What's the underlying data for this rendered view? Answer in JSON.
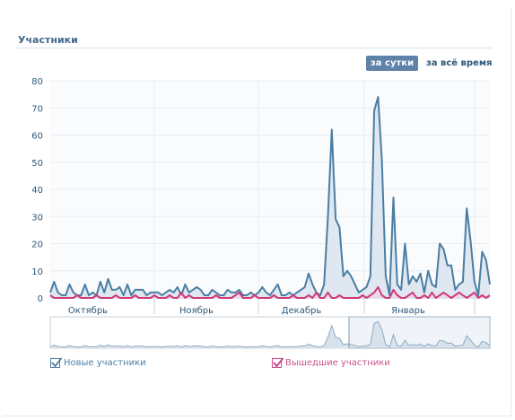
{
  "header": {
    "title": "Участники"
  },
  "period_tabs": [
    {
      "label": "за сутки",
      "active": true
    },
    {
      "label": "за всё время",
      "active": false
    }
  ],
  "colors": {
    "accent": "#5e82a8",
    "series_joined_line": "#4a7ea4",
    "series_joined_fill": "#dbe6ef",
    "series_left_line": "#d0397c",
    "grid": "#e8ecf0"
  },
  "legend": [
    {
      "label": "Новые участники",
      "checked": true,
      "color": "#4a7ea4"
    },
    {
      "label": "Вышедшие участники",
      "checked": true,
      "color": "#d0397c"
    }
  ],
  "chart_data": {
    "type": "area",
    "title": "",
    "xlabel": "",
    "ylabel": "",
    "ylim": [
      0,
      80
    ],
    "yticks": [
      0,
      10,
      20,
      30,
      40,
      50,
      60,
      70,
      80
    ],
    "month_labels": [
      "Октябрь",
      "Ноябрь",
      "Декабрь",
      "Январь"
    ],
    "grid": true,
    "legend_position": "bottom",
    "series": [
      {
        "name": "Новые участники",
        "values": [
          2,
          6,
          2,
          1,
          1,
          5,
          2,
          1,
          1,
          5,
          1,
          2,
          1,
          6,
          2,
          7,
          3,
          3,
          4,
          1,
          5,
          1,
          3,
          3,
          3,
          1,
          2,
          2,
          2,
          1,
          2,
          3,
          2,
          4,
          1,
          5,
          2,
          3,
          4,
          3,
          1,
          1,
          3,
          2,
          1,
          1,
          3,
          2,
          2,
          3,
          1,
          1,
          2,
          1,
          2,
          4,
          2,
          1,
          3,
          5,
          1,
          1,
          2,
          1,
          2,
          3,
          4,
          9,
          5,
          2,
          1,
          5,
          30,
          62,
          29,
          26,
          8,
          10,
          8,
          5,
          2,
          3,
          4,
          8,
          69,
          74,
          51,
          8,
          1,
          37,
          5,
          3,
          20,
          5,
          8,
          6,
          9,
          2,
          10,
          5,
          4,
          20,
          18,
          12,
          12,
          3,
          5,
          6,
          33,
          21,
          6,
          1,
          17,
          14,
          5
        ]
      },
      {
        "name": "Вышедшие участники",
        "values": [
          1,
          0,
          0,
          0,
          0,
          0,
          0,
          1,
          0,
          0,
          0,
          0,
          1,
          0,
          0,
          0,
          0,
          1,
          0,
          0,
          0,
          0,
          1,
          0,
          0,
          0,
          0,
          1,
          0,
          0,
          0,
          1,
          0,
          0,
          2,
          0,
          1,
          0,
          0,
          0,
          0,
          0,
          0,
          1,
          0,
          0,
          0,
          0,
          1,
          2,
          0,
          0,
          0,
          1,
          0,
          0,
          0,
          0,
          1,
          0,
          0,
          0,
          0,
          1,
          0,
          0,
          0,
          1,
          0,
          2,
          0,
          0,
          2,
          0,
          0,
          1,
          0,
          0,
          0,
          0,
          0,
          1,
          0,
          1,
          2,
          4,
          1,
          0,
          0,
          3,
          1,
          0,
          0,
          1,
          2,
          0,
          0,
          1,
          0,
          2,
          0,
          1,
          2,
          1,
          0,
          1,
          2,
          1,
          0,
          1,
          2,
          0,
          1,
          0,
          1
        ]
      }
    ]
  }
}
